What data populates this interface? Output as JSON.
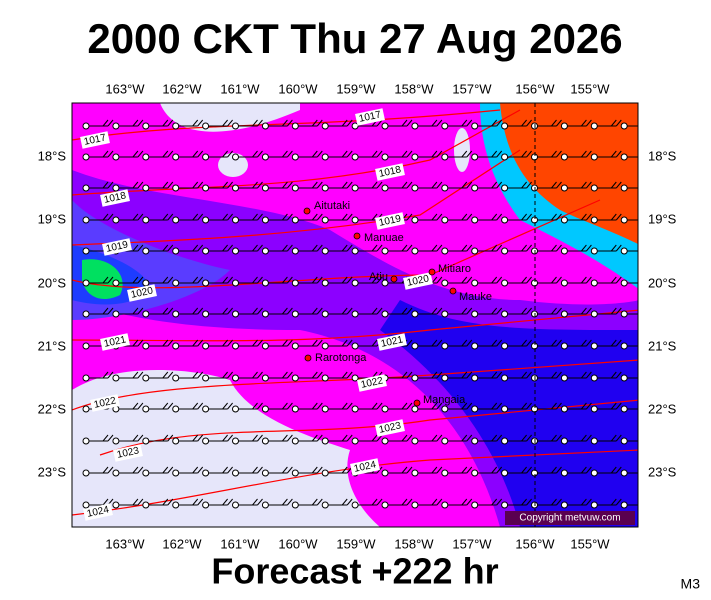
{
  "title": "2000 CKT Thu 27 Aug 2026",
  "footer": "Forecast +222 hr",
  "model": "M3",
  "copyright": "Copyright metvuw.com",
  "lon_labels": [
    "163°W",
    "162°W",
    "161°W",
    "160°W",
    "159°W",
    "158°W",
    "157°W",
    "156°W",
    "155°W"
  ],
  "lat_labels": [
    "18°S",
    "19°S",
    "20°S",
    "21°S",
    "22°S",
    "23°S"
  ],
  "places": [
    "Aitutaki",
    "Manuae",
    "Mitiaro",
    "Atiu",
    "Mauke",
    "Rarotonga",
    "Mangaia"
  ],
  "isobar_labels": [
    "1017",
    "1017",
    "1018",
    "1018",
    "1019",
    "1019",
    "1020",
    "1020",
    "1021",
    "1021",
    "1022",
    "1022",
    "1023",
    "1023",
    "1024",
    "1024"
  ]
}
